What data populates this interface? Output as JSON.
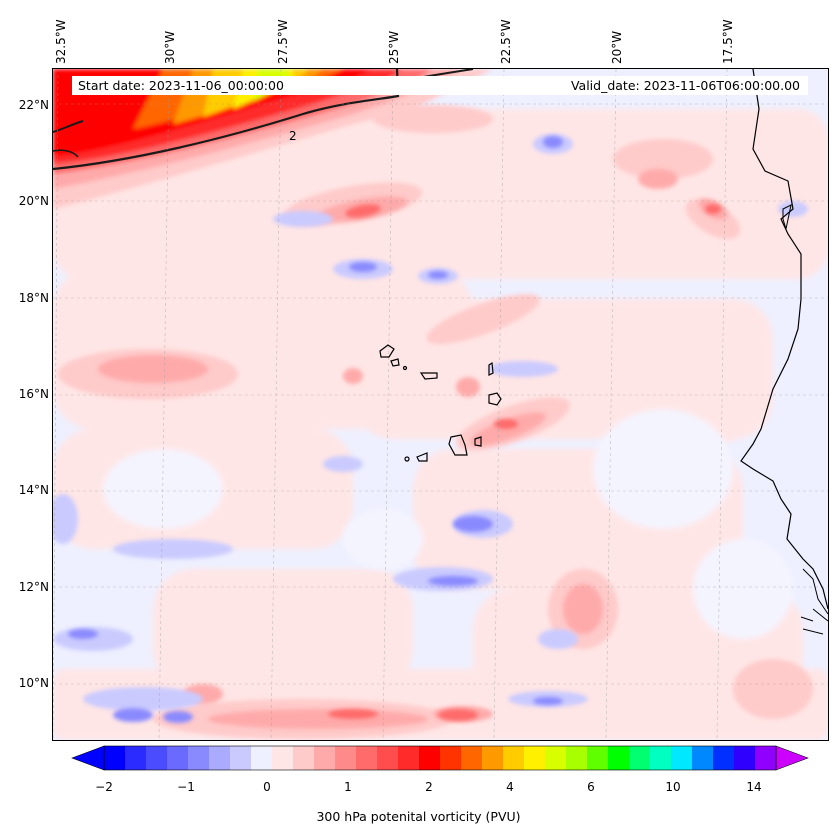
{
  "header": {
    "start_date": "Start date: 2023-11-06_00:00:00",
    "valid_date": "Valid_date: 2023-11-06T06:00:00.00"
  },
  "longitude_labels": [
    "32.5°W",
    "30°W",
    "27.5°W",
    "25°W",
    "22.5°W",
    "20°W",
    "17.5°W"
  ],
  "latitude_labels": [
    "22°N",
    "20°N",
    "18°N",
    "16°N",
    "14°N",
    "12°N",
    "10°N"
  ],
  "contour_label": "2",
  "colorbar": {
    "title": "300 hPa potenital vorticity (PVU)",
    "tick_labels": [
      "−2",
      "−1",
      "0",
      "1",
      "2",
      "4",
      "6",
      "10",
      "14"
    ],
    "colors": [
      "#0000ff",
      "#2b2bff",
      "#4c4cff",
      "#6a6aff",
      "#8a8aff",
      "#aaaaff",
      "#cacaff",
      "#eef0ff",
      "#ffe6e6",
      "#ffcaca",
      "#ffaaaa",
      "#ff8a8a",
      "#ff6a6a",
      "#ff4c4c",
      "#ff2b2b",
      "#ff0000",
      "#ff3300",
      "#ff6600",
      "#ff9900",
      "#ffcc00",
      "#fff000",
      "#d8ff00",
      "#a8ff00",
      "#60ff00",
      "#00ff00",
      "#00ff70",
      "#00ffc0",
      "#00e8ff",
      "#0088ff",
      "#0030ff",
      "#3000ff",
      "#9000ff"
    ]
  }
}
